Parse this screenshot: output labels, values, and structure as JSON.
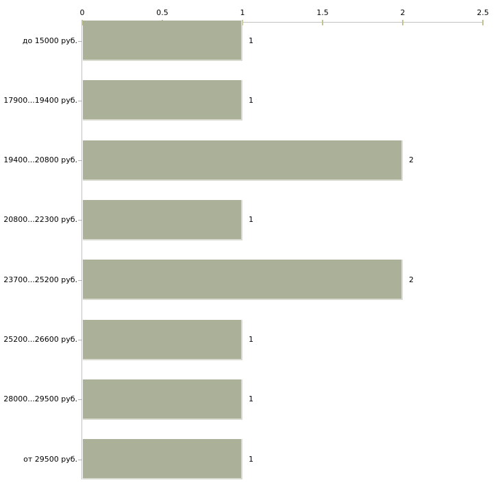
{
  "chart_data": {
    "type": "bar",
    "orientation": "horizontal",
    "title": "",
    "xlabel": "",
    "ylabel": "",
    "categories": [
      "до 15000 руб.",
      "17900...19400 руб.",
      "19400...20800 руб.",
      "20800...22300 руб.",
      "23700...25200 руб.",
      "25200...26600 руб.",
      "28000...29500 руб.",
      "от 29500 руб."
    ],
    "values": [
      1,
      1,
      2,
      1,
      2,
      1,
      1,
      1
    ],
    "value_labels": [
      "1",
      "1",
      "2",
      "1",
      "2",
      "1",
      "1",
      "1"
    ],
    "x_ticks": [
      0,
      0.5,
      1,
      1.5,
      2,
      2.5
    ],
    "x_tick_labels": [
      "0",
      "0.5",
      "1",
      "1.5",
      "2",
      "2.5"
    ],
    "xlim": [
      0,
      2.5
    ],
    "axis_position": "top",
    "grid": false,
    "legend": false,
    "colors": {
      "background": "#ffffff",
      "bar_fill": "#abb199",
      "bar_edge_highlight": "#d9dbd1",
      "axis_line": "#c0c0c0",
      "x_tick_mark": "#c2c294",
      "y_tick_mark": "#b0b0b0",
      "text": "#000000"
    }
  }
}
